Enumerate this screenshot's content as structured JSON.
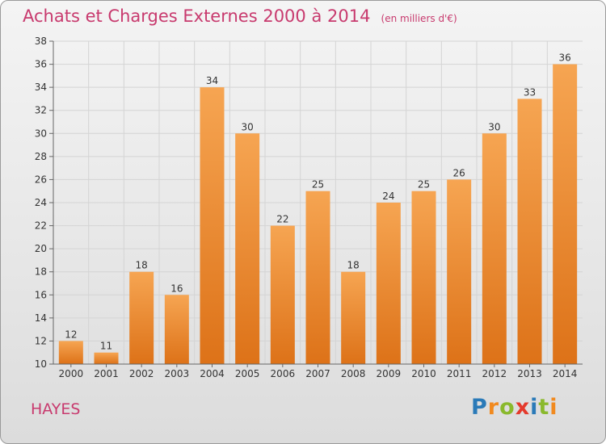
{
  "title": "Achats et Charges Externes 2000 à 2014",
  "unit": "(en milliers d'€)",
  "commune": "HAYES",
  "logo": {
    "letters": [
      "P",
      "r",
      "o",
      "x",
      "i",
      "t",
      "i"
    ],
    "colors": [
      "#2a7ab8",
      "#f18a1f",
      "#8ab92d",
      "#e43a2c",
      "#2a7ab8",
      "#8ab92d",
      "#f18a1f"
    ]
  },
  "colors": {
    "bar_top": "#f6a552",
    "bar_bottom": "#dd7218",
    "text": "#c83a6e",
    "grid": "#d4d4d4"
  },
  "chart_data": {
    "type": "bar",
    "categories": [
      "2000",
      "2001",
      "2002",
      "2003",
      "2004",
      "2005",
      "2006",
      "2007",
      "2008",
      "2009",
      "2010",
      "2011",
      "2012",
      "2013",
      "2014"
    ],
    "values": [
      12,
      11,
      18,
      16,
      34,
      30,
      22,
      25,
      18,
      24,
      25,
      26,
      30,
      33,
      36
    ],
    "ylim": [
      10,
      38
    ],
    "yticks": [
      10,
      12,
      14,
      16,
      18,
      20,
      22,
      24,
      26,
      28,
      30,
      32,
      34,
      36,
      38
    ],
    "grid": true,
    "xlabel": "",
    "ylabel": ""
  }
}
